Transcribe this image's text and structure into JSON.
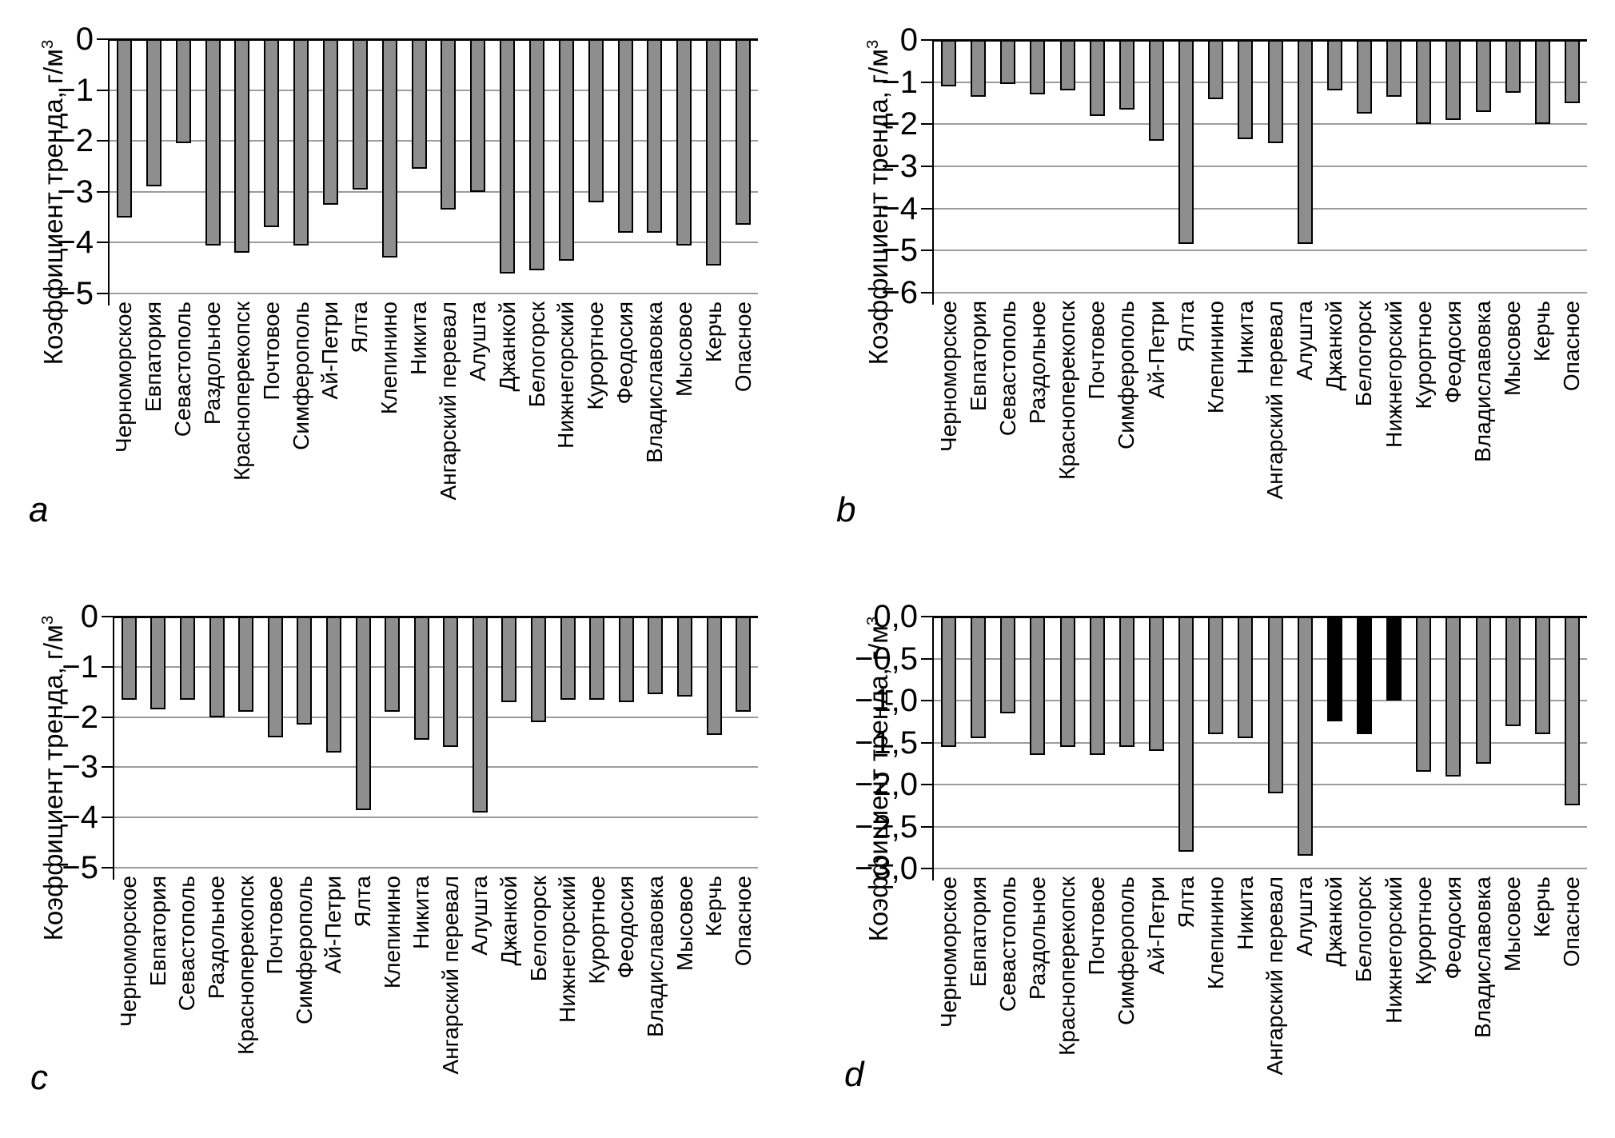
{
  "figure": {
    "y_axis_title": {
      "text": "Коэффициент тренда, г/м",
      "sup": "3"
    },
    "categories": [
      "Черноморское",
      "Евпатория",
      "Севастополь",
      "Раздольное",
      "Красноперекопск",
      "Почтовое",
      "Симферополь",
      "Ай-Петри",
      "Ялта",
      "Клепинино",
      "Никита",
      "Ангарский перевал",
      "Алушта",
      "Джанкой",
      "Белогорск",
      "Нижнегорский",
      "Курортное",
      "Феодосия",
      "Владиславовка",
      "Мысовое",
      "Керчь",
      "Опасное"
    ],
    "colors": {
      "bar_fill": "#8e8e8e",
      "bar_fill_highlight": "#000000",
      "bar_border": "#000000",
      "gridline": "#9c9c9c",
      "axis": "#000000",
      "text": "#000000",
      "background": "#ffffff"
    }
  },
  "chart_data": [
    {
      "id": "a",
      "letter": "a",
      "type": "bar",
      "title": "",
      "xlabel": "",
      "ylabel": "Коэффициент тренда, г/м3",
      "ylim": [
        -5,
        0
      ],
      "grid": true,
      "legend": "none",
      "yticks": [
        {
          "label": "0",
          "value": 0
        },
        {
          "label": "−1",
          "value": -1
        },
        {
          "label": "−2",
          "value": -2
        },
        {
          "label": "−3",
          "value": -3
        },
        {
          "label": "−4",
          "value": -4
        },
        {
          "label": "−5",
          "value": -5
        }
      ],
      "values": [
        -3.5,
        -2.9,
        -2.05,
        -4.05,
        -4.2,
        -3.7,
        -4.05,
        -3.25,
        -2.95,
        -4.3,
        -2.55,
        -3.35,
        -3.0,
        -4.6,
        -4.55,
        -4.35,
        -3.2,
        -3.8,
        -3.8,
        -4.05,
        -4.45,
        -3.65
      ]
    },
    {
      "id": "b",
      "letter": "b",
      "type": "bar",
      "title": "",
      "xlabel": "",
      "ylabel": "Коэффициент тренда, г/м3",
      "ylim": [
        -6,
        0
      ],
      "grid": true,
      "legend": "none",
      "yticks": [
        {
          "label": "0",
          "value": 0
        },
        {
          "label": "−1",
          "value": -1
        },
        {
          "label": "−2",
          "value": -2
        },
        {
          "label": "−3",
          "value": -3
        },
        {
          "label": "−4",
          "value": -4
        },
        {
          "label": "−5",
          "value": -5
        },
        {
          "label": "−6",
          "value": -6
        }
      ],
      "values": [
        -1.1,
        -1.35,
        -1.05,
        -1.3,
        -1.2,
        -1.8,
        -1.65,
        -2.4,
        -4.85,
        -1.4,
        -2.35,
        -2.45,
        -4.85,
        -1.2,
        -1.75,
        -1.35,
        -2.0,
        -1.9,
        -1.7,
        -1.25,
        -2.0,
        -1.5
      ]
    },
    {
      "id": "c",
      "letter": "c",
      "type": "bar",
      "title": "",
      "xlabel": "",
      "ylabel": "Коэффициент тренда, г/м3",
      "ylim": [
        -5,
        0
      ],
      "grid": true,
      "legend": "none",
      "yticks": [
        {
          "label": "0",
          "value": 0
        },
        {
          "label": "−1",
          "value": -1
        },
        {
          "label": "−2",
          "value": -2
        },
        {
          "label": "−3",
          "value": -3
        },
        {
          "label": "−4",
          "value": -4
        },
        {
          "label": "−5",
          "value": -5
        }
      ],
      "values": [
        -1.65,
        -1.85,
        -1.65,
        -2.0,
        -1.9,
        -2.4,
        -2.15,
        -2.7,
        -3.85,
        -1.9,
        -2.45,
        -2.6,
        -3.9,
        -1.7,
        -2.1,
        -1.65,
        -1.65,
        -1.7,
        -1.55,
        -1.6,
        -2.35,
        -1.9
      ]
    },
    {
      "id": "d",
      "letter": "d",
      "type": "bar",
      "title": "",
      "xlabel": "",
      "ylabel": "Коэффициент тренда, г/м3",
      "ylim": [
        -3,
        0
      ],
      "grid": true,
      "legend": "none",
      "yticks": [
        {
          "label": "0,0",
          "value": 0
        },
        {
          "label": "−0,5",
          "value": -0.5
        },
        {
          "label": "−1,0",
          "value": -1
        },
        {
          "label": "−1,5",
          "value": -1.5
        },
        {
          "label": "−2,0",
          "value": -2
        },
        {
          "label": "−2,5",
          "value": -2.5
        },
        {
          "label": "−3,0",
          "value": -3
        }
      ],
      "values": [
        -1.55,
        -1.45,
        -1.15,
        -1.65,
        -1.55,
        -1.65,
        -1.55,
        -1.6,
        -2.8,
        -1.4,
        -1.45,
        -2.1,
        -2.85,
        -1.25,
        -1.4,
        -1.0,
        -1.85,
        -1.9,
        -1.75,
        -1.3,
        -1.4,
        -2.25
      ],
      "black_categories": [
        "Джанкой",
        "Белогорск",
        "Нижнегорский"
      ]
    }
  ]
}
